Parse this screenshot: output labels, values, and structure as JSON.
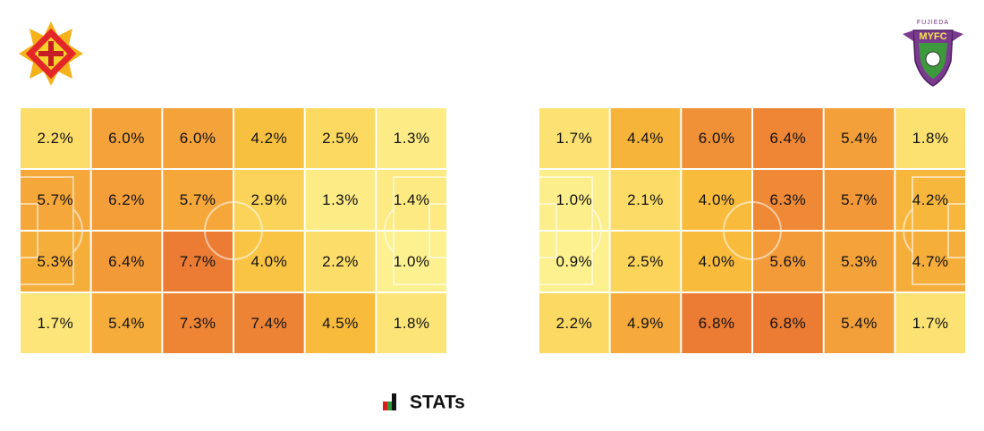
{
  "chart_data": [
    {
      "type": "heatmap",
      "values": [
        [
          2.2,
          6.0,
          6.0,
          4.2,
          2.5,
          1.3
        ],
        [
          5.7,
          6.2,
          5.7,
          2.9,
          1.3,
          1.4
        ],
        [
          5.3,
          6.4,
          7.7,
          4.0,
          2.2,
          1.0
        ],
        [
          1.7,
          5.4,
          7.3,
          7.4,
          4.5,
          1.8
        ]
      ],
      "value_labels": [
        [
          "2.2%",
          "6.0%",
          "6.0%",
          "4.2%",
          "2.5%",
          "1.3%"
        ],
        [
          "5.7%",
          "6.2%",
          "5.7%",
          "2.9%",
          "1.3%",
          "1.4%"
        ],
        [
          "5.3%",
          "6.4%",
          "7.7%",
          "4.0%",
          "2.2%",
          "1.0%"
        ],
        [
          "1.7%",
          "5.4%",
          "7.3%",
          "7.4%",
          "4.5%",
          "1.8%"
        ]
      ],
      "colors": [
        "#fdf08f",
        "#fcd65c",
        "#f8be3c",
        "#f4a23a",
        "#ec7c33"
      ]
    },
    {
      "type": "heatmap",
      "values": [
        [
          1.7,
          4.4,
          6.0,
          6.4,
          5.4,
          1.8
        ],
        [
          1.0,
          2.1,
          4.0,
          6.3,
          5.7,
          4.2
        ],
        [
          0.9,
          2.5,
          4.0,
          5.6,
          5.3,
          4.7
        ],
        [
          2.2,
          4.9,
          6.8,
          6.8,
          5.4,
          1.7
        ]
      ],
      "value_labels": [
        [
          "1.7%",
          "4.4%",
          "6.0%",
          "6.4%",
          "5.4%",
          "1.8%"
        ],
        [
          "1.0%",
          "2.1%",
          "4.0%",
          "6.3%",
          "5.7%",
          "4.2%"
        ],
        [
          "0.9%",
          "2.5%",
          "4.0%",
          "5.6%",
          "5.3%",
          "4.7%"
        ],
        [
          "2.2%",
          "4.9%",
          "6.8%",
          "6.8%",
          "5.4%",
          "1.7%"
        ]
      ],
      "colors": [
        "#fdf08f",
        "#fcd65c",
        "#f8be3c",
        "#f4a23a",
        "#ec7c33"
      ]
    }
  ],
  "away_logo": {
    "top": "FUJIEDA",
    "name": "MYFC"
  },
  "footer": "STATs"
}
